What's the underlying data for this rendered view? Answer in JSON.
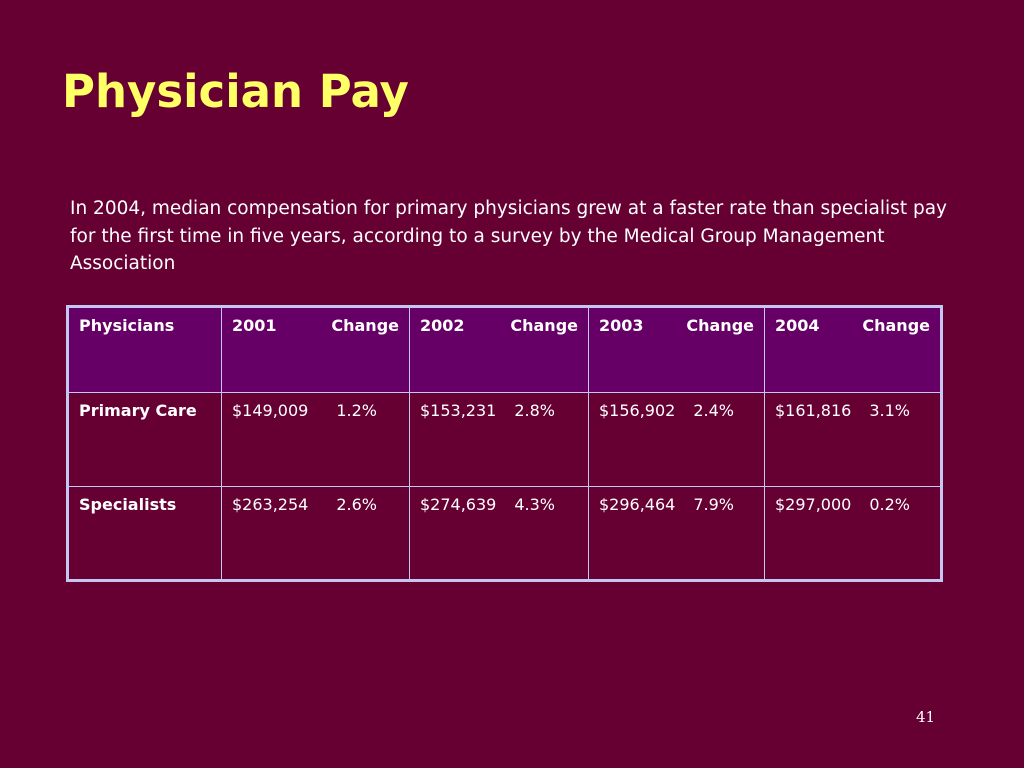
{
  "slide": {
    "title": "Physician Pay",
    "intro": "In 2004, median compensation for primary physicians grew at a faster rate than specialist pay for the first time in five years, according to a survey by the Medical Group Management Association",
    "page_number": "41"
  },
  "colors": {
    "background": "#660033",
    "title": "#ffff66",
    "header_fill": "#660066",
    "table_border": "#c6c6f2",
    "text": "#ffffff"
  },
  "table": {
    "header": {
      "label": "Physicians",
      "columns": [
        {
          "year": "2001",
          "change": "Change"
        },
        {
          "year": "2002",
          "change": "Change"
        },
        {
          "year": "2003",
          "change": "Change"
        },
        {
          "year": "2004",
          "change": "Change"
        }
      ]
    },
    "rows": [
      {
        "label": "Primary Care",
        "cells": [
          {
            "value": "$149,009",
            "change": "1.2%"
          },
          {
            "value": "$153,231",
            "change": "2.8%"
          },
          {
            "value": "$156,902",
            "change": "2.4%"
          },
          {
            "value": "$161,816",
            "change": "3.1%"
          }
        ]
      },
      {
        "label": "Specialists",
        "cells": [
          {
            "value": "$263,254",
            "change": "2.6%"
          },
          {
            "value": "$274,639",
            "change": "4.3%"
          },
          {
            "value": "$296,464",
            "change": "7.9%"
          },
          {
            "value": "$297,000",
            "change": "0.2%"
          }
        ]
      }
    ]
  }
}
